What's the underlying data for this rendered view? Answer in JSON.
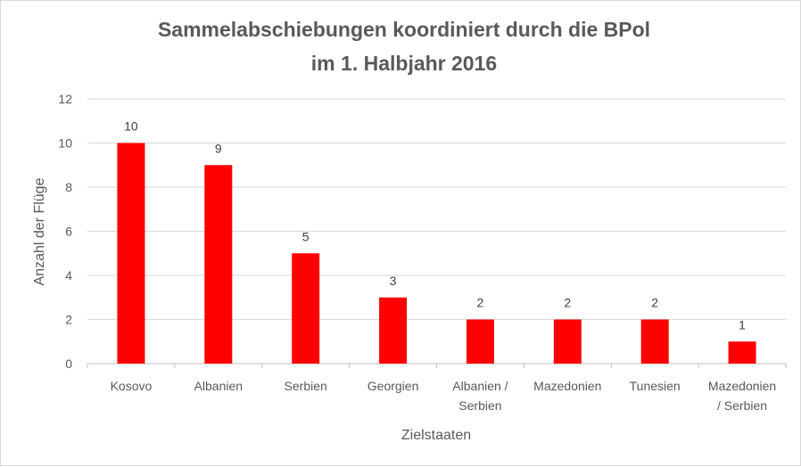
{
  "chart_data": {
    "type": "bar",
    "title_lines": [
      "Sammelabschiebungen koordiniert durch die BPol",
      "im 1. Halbjahr 2016"
    ],
    "xlabel": "Zielstaaten",
    "ylabel": "Anzahl der Flüge",
    "categories": [
      [
        "Kosovo"
      ],
      [
        "Albanien"
      ],
      [
        "Serbien"
      ],
      [
        "Georgien"
      ],
      [
        "Albanien /",
        "Serbien"
      ],
      [
        "Mazedonien"
      ],
      [
        "Tunesien"
      ],
      [
        "Mazedonien",
        "/ Serbien"
      ]
    ],
    "values": [
      10,
      9,
      5,
      3,
      2,
      2,
      2,
      1
    ],
    "ylim": [
      0,
      12
    ],
    "yticks": [
      0,
      2,
      4,
      6,
      8,
      10,
      12
    ],
    "grid": true,
    "bar_color": "#ff0000",
    "data_labels": true
  }
}
